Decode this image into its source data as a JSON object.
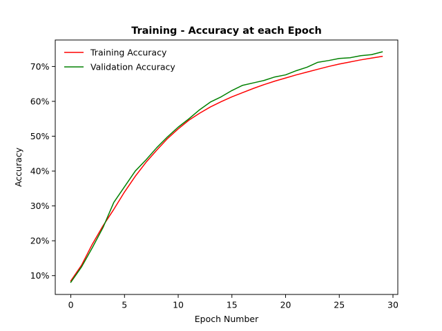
{
  "chart_data": {
    "type": "line",
    "title": "Training - Accuracy at each Epoch",
    "xlabel": "Epoch Number",
    "ylabel": "Accuracy",
    "xlim": [
      -1.45,
      30.45
    ],
    "ylim": [
      0.046,
      0.776
    ],
    "xticks": [
      0,
      5,
      10,
      15,
      20,
      25,
      30
    ],
    "xtick_labels": [
      "0",
      "5",
      "10",
      "15",
      "20",
      "25",
      "30"
    ],
    "yticks": [
      0.1,
      0.2,
      0.3,
      0.4,
      0.5,
      0.6,
      0.7
    ],
    "ytick_labels": [
      "10%",
      "20%",
      "30%",
      "40%",
      "50%",
      "60%",
      "70%"
    ],
    "grid": false,
    "legend_position": "upper-left",
    "x": [
      0,
      1,
      2,
      3,
      4,
      5,
      6,
      7,
      8,
      9,
      10,
      11,
      12,
      13,
      14,
      15,
      16,
      17,
      18,
      19,
      20,
      21,
      22,
      23,
      24,
      25,
      26,
      27,
      28,
      29
    ],
    "series": [
      {
        "name": "Training Accuracy",
        "color": "#ff0000",
        "values": [
          0.085,
          0.13,
          0.19,
          0.243,
          0.29,
          0.34,
          0.385,
          0.425,
          0.46,
          0.493,
          0.521,
          0.546,
          0.566,
          0.584,
          0.599,
          0.613,
          0.625,
          0.637,
          0.648,
          0.658,
          0.667,
          0.676,
          0.684,
          0.692,
          0.7,
          0.707,
          0.713,
          0.719,
          0.724,
          0.729
        ]
      },
      {
        "name": "Validation Accuracy",
        "color": "#008000",
        "values": [
          0.081,
          0.125,
          0.18,
          0.238,
          0.31,
          0.355,
          0.4,
          0.432,
          0.467,
          0.498,
          0.526,
          0.55,
          0.576,
          0.598,
          0.613,
          0.631,
          0.646,
          0.653,
          0.66,
          0.67,
          0.676,
          0.688,
          0.698,
          0.712,
          0.717,
          0.723,
          0.725,
          0.731,
          0.734,
          0.742
        ]
      }
    ]
  }
}
